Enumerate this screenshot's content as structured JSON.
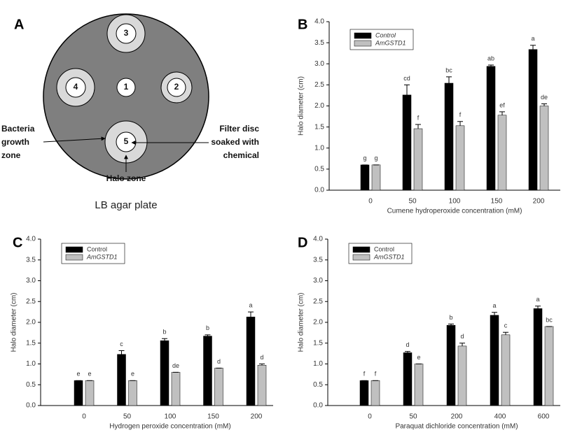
{
  "diagram": {
    "panel": "A",
    "discs": [
      "1",
      "2",
      "3",
      "4",
      "5"
    ],
    "growth_label": [
      "Bacteria",
      "growth",
      "zone"
    ],
    "disc_label": [
      "Filter disc",
      "soaked with",
      "chemical"
    ],
    "halo_label": "Halo zone",
    "plate_label": "LB agar plate"
  },
  "chart_data": [
    {
      "type": "bar",
      "panel": "B",
      "x_label": "Cumene hydroperoxide concentration (mM)",
      "y_label": "Halo diameter (cm)",
      "categories": [
        "0",
        "50",
        "100",
        "150",
        "200"
      ],
      "ylim": [
        0,
        4
      ],
      "yticks": [
        {
          "value": 0,
          "label": "0.0"
        },
        {
          "value": 0.5,
          "label": "0.5"
        },
        {
          "value": 1,
          "label": "1.0"
        },
        {
          "value": 1.5,
          "label": "1.5"
        },
        {
          "value": 2,
          "label": "2.0"
        },
        {
          "value": 2.5,
          "label": "2.5"
        },
        {
          "value": 3,
          "label": "3.0"
        },
        {
          "value": 3.5,
          "label": "3.5"
        },
        {
          "value": 4,
          "label": "4.0"
        }
      ],
      "legend_italic": [
        true,
        true
      ],
      "series": [
        {
          "name": "Control",
          "color": "#000000",
          "values": [
            0.6,
            2.26,
            2.54,
            2.94,
            3.34
          ],
          "errors": [
            0,
            0.24,
            0.15,
            0.03,
            0.1
          ],
          "letters": [
            "g",
            "cd",
            "bc",
            "ab",
            "a"
          ]
        },
        {
          "name": "AmGSTD1",
          "color": "#c0c0c0",
          "values": [
            0.6,
            1.46,
            1.53,
            1.78,
            2.0
          ],
          "errors": [
            0,
            0.1,
            0.1,
            0.08,
            0.05
          ],
          "letters": [
            "g",
            "f",
            "f",
            "ef",
            "de"
          ]
        }
      ]
    },
    {
      "type": "bar",
      "panel": "C",
      "x_label": "Hydrogen peroxide concentration (mM)",
      "y_label": "Halo diameter (cm)",
      "categories": [
        "0",
        "50",
        "100",
        "150",
        "200"
      ],
      "ylim": [
        0,
        4
      ],
      "yticks": [
        {
          "value": 0,
          "label": "0.0"
        },
        {
          "value": 0.5,
          "label": "0.5"
        },
        {
          "value": 1,
          "label": "1.0"
        },
        {
          "value": 1.5,
          "label": "1.5"
        },
        {
          "value": 2,
          "label": "2.0"
        },
        {
          "value": 2.5,
          "label": "2.5"
        },
        {
          "value": 3,
          "label": "3.0"
        },
        {
          "value": 3.5,
          "label": "3.5"
        },
        {
          "value": 4,
          "label": "4.0"
        }
      ],
      "legend_italic": [
        false,
        true
      ],
      "series": [
        {
          "name": "Control",
          "color": "#000000",
          "values": [
            0.6,
            1.23,
            1.56,
            1.67,
            2.13
          ],
          "errors": [
            0,
            0.09,
            0.05,
            0.03,
            0.12
          ],
          "letters": [
            "e",
            "c",
            "b",
            "b",
            "a"
          ]
        },
        {
          "name": "AmGSTD1",
          "color": "#c0c0c0",
          "values": [
            0.6,
            0.6,
            0.8,
            0.9,
            0.97
          ],
          "errors": [
            0,
            0,
            0,
            0,
            0.03
          ],
          "letters": [
            "e",
            "e",
            "de",
            "d",
            "d"
          ]
        }
      ]
    },
    {
      "type": "bar",
      "panel": "D",
      "x_label": "Paraquat dichloride concentration (mM)",
      "y_label": "Halo diameter (cm)",
      "categories": [
        "0",
        "50",
        "200",
        "400",
        "600"
      ],
      "ylim": [
        0,
        4
      ],
      "yticks": [
        {
          "value": 0,
          "label": "0.0"
        },
        {
          "value": 0.5,
          "label": "0.5"
        },
        {
          "value": 1,
          "label": "1.0"
        },
        {
          "value": 1.5,
          "label": "1.5"
        },
        {
          "value": 2,
          "label": "2.0"
        },
        {
          "value": 2.5,
          "label": "2.5"
        },
        {
          "value": 3,
          "label": "3.0"
        },
        {
          "value": 3.5,
          "label": "3.5"
        },
        {
          "value": 4,
          "label": "4.0"
        }
      ],
      "legend_italic": [
        false,
        true
      ],
      "series": [
        {
          "name": "Control",
          "color": "#000000",
          "values": [
            0.6,
            1.27,
            1.93,
            2.17,
            2.33
          ],
          "errors": [
            0,
            0.03,
            0.03,
            0.07,
            0.06
          ],
          "letters": [
            "f",
            "d",
            "b",
            "a",
            "a"
          ]
        },
        {
          "name": "AmGSTD1",
          "color": "#c0c0c0",
          "values": [
            0.6,
            1.0,
            1.43,
            1.7,
            1.9
          ],
          "errors": [
            0,
            0,
            0.07,
            0.06,
            0
          ],
          "letters": [
            "f",
            "e",
            "d",
            "c",
            "bc"
          ]
        }
      ]
    }
  ]
}
